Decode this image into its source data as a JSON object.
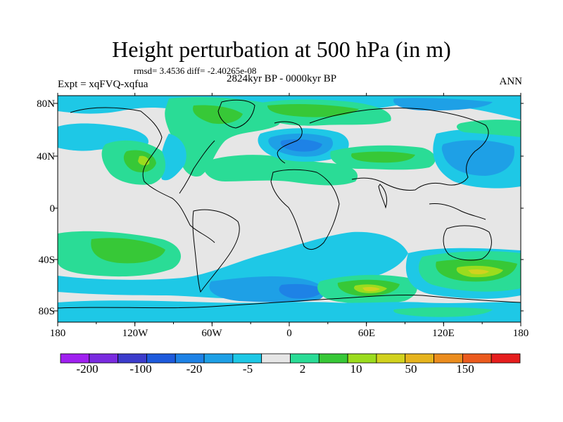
{
  "title": "Height perturbation at 500 hPa (in m)",
  "stats": "rmsd= 3.4536 diff= -2.40265e-08",
  "experiment": "Expt = xqFVQ-xqfua",
  "period": "2824kyr BP - 0000kyr BP",
  "season": "ANN",
  "lat_labels": [
    "80N",
    "40N",
    "0",
    "40S",
    "80S"
  ],
  "lon_labels": [
    "180",
    "120W",
    "60W",
    "0",
    "60E",
    "120E",
    "180"
  ],
  "colorbar": {
    "labels": [
      "-200",
      "-100",
      "-20",
      "-5",
      "2",
      "10",
      "50",
      "150"
    ],
    "colors": [
      "#a020f0",
      "#7a2be0",
      "#3c3ccc",
      "#1e5adc",
      "#1e82e6",
      "#1ea0e6",
      "#1ec8e6",
      "#e6e6e6",
      "#2adc96",
      "#37c837",
      "#9bdc1e",
      "#d2d21e",
      "#e6b41e",
      "#eb8c1e",
      "#eb5a1e",
      "#e61e1e"
    ]
  },
  "palette": {
    "neutral": "#e6e6e6",
    "cyan": "#1ec8e6",
    "light_blue": "#1ea0e6",
    "blue": "#1e82e6",
    "teal_green": "#2adc96",
    "green": "#37c837",
    "yellow_green": "#9bdc1e",
    "yellow": "#d2d21e"
  }
}
